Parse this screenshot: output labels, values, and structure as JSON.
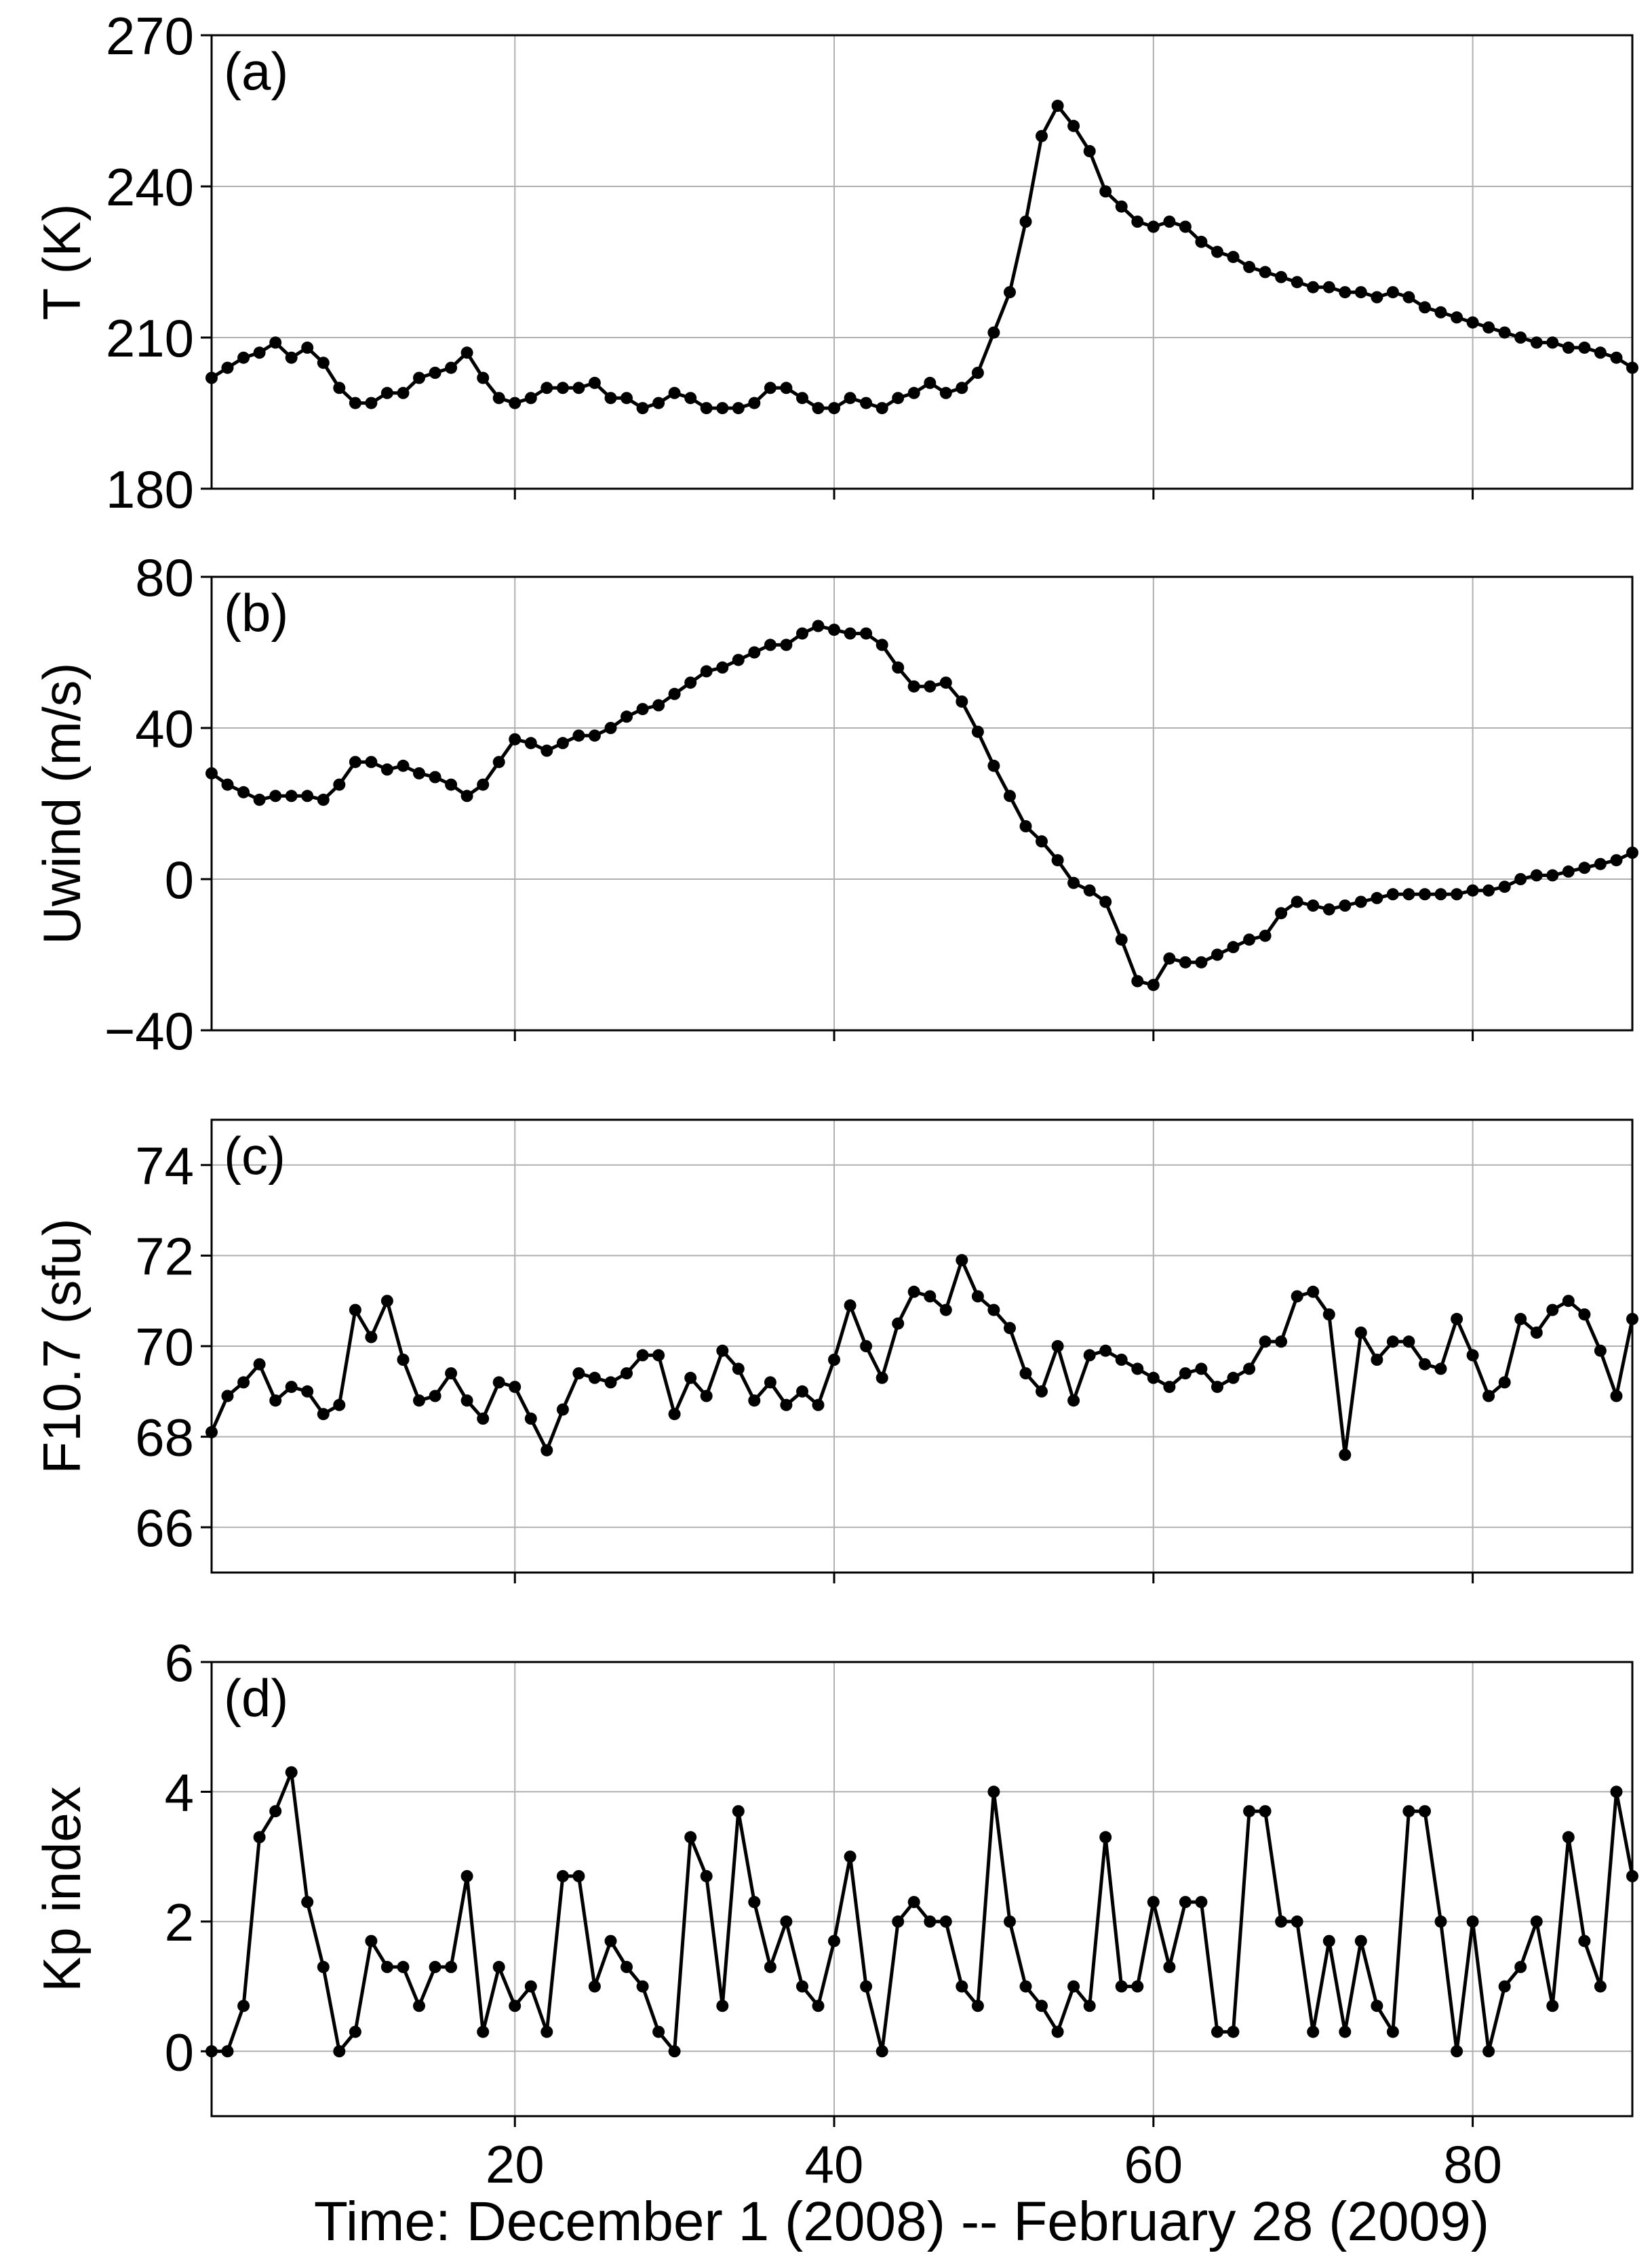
{
  "chart_data": [
    {
      "type": "line",
      "panel_label": "(a)",
      "ylabel": "T (K)",
      "xlim": [
        1,
        90
      ],
      "ylim": [
        180,
        270
      ],
      "yticks": [
        "180",
        "210",
        "240",
        "270"
      ],
      "grid": true,
      "x": [
        1,
        2,
        3,
        4,
        5,
        6,
        7,
        8,
        9,
        10,
        11,
        12,
        13,
        14,
        15,
        16,
        17,
        18,
        19,
        20,
        21,
        22,
        23,
        24,
        25,
        26,
        27,
        28,
        29,
        30,
        31,
        32,
        33,
        34,
        35,
        36,
        37,
        38,
        39,
        40,
        41,
        42,
        43,
        44,
        45,
        46,
        47,
        48,
        49,
        50,
        51,
        52,
        53,
        54,
        55,
        56,
        57,
        58,
        59,
        60,
        61,
        62,
        63,
        64,
        65,
        66,
        67,
        68,
        69,
        70,
        71,
        72,
        73,
        74,
        75,
        76,
        77,
        78,
        79,
        80,
        81,
        82,
        83,
        84,
        85,
        86,
        87,
        88,
        89,
        90
      ],
      "values": [
        202,
        204,
        206,
        207,
        209,
        206,
        208,
        205,
        200,
        197,
        197,
        199,
        199,
        202,
        203,
        204,
        207,
        202,
        198,
        197,
        198,
        200,
        200,
        200,
        201,
        198,
        198,
        196,
        197,
        199,
        198,
        196,
        196,
        196,
        197,
        200,
        200,
        198,
        196,
        196,
        198,
        197,
        196,
        198,
        199,
        201,
        199,
        200,
        203,
        211,
        219,
        233,
        250,
        256,
        252,
        247,
        239,
        236,
        233,
        232,
        233,
        232,
        229,
        227,
        226,
        224,
        223,
        222,
        221,
        220,
        220,
        219,
        219,
        218,
        219,
        218,
        216,
        215,
        214,
        213,
        212,
        211,
        210,
        209,
        209,
        208,
        208,
        207,
        206,
        204
      ]
    },
    {
      "type": "line",
      "panel_label": "(b)",
      "ylabel": "Uwind (m/s)",
      "xlim": [
        1,
        90
      ],
      "ylim": [
        -40,
        80
      ],
      "yticks": [
        "−40",
        "0",
        "40",
        "80"
      ],
      "grid": true,
      "x": [
        1,
        2,
        3,
        4,
        5,
        6,
        7,
        8,
        9,
        10,
        11,
        12,
        13,
        14,
        15,
        16,
        17,
        18,
        19,
        20,
        21,
        22,
        23,
        24,
        25,
        26,
        27,
        28,
        29,
        30,
        31,
        32,
        33,
        34,
        35,
        36,
        37,
        38,
        39,
        40,
        41,
        42,
        43,
        44,
        45,
        46,
        47,
        48,
        49,
        50,
        51,
        52,
        53,
        54,
        55,
        56,
        57,
        58,
        59,
        60,
        61,
        62,
        63,
        64,
        65,
        66,
        67,
        68,
        69,
        70,
        71,
        72,
        73,
        74,
        75,
        76,
        77,
        78,
        79,
        80,
        81,
        82,
        83,
        84,
        85,
        86,
        87,
        88,
        89,
        90
      ],
      "values": [
        28,
        25,
        23,
        21,
        22,
        22,
        22,
        21,
        25,
        31,
        31,
        29,
        30,
        28,
        27,
        25,
        22,
        25,
        31,
        37,
        36,
        34,
        36,
        38,
        38,
        40,
        43,
        45,
        46,
        49,
        52,
        55,
        56,
        58,
        60,
        62,
        62,
        65,
        67,
        66,
        65,
        65,
        62,
        56,
        51,
        51,
        52,
        47,
        39,
        30,
        22,
        14,
        10,
        5,
        -1,
        -3,
        -6,
        -16,
        -27,
        -28,
        -21,
        -22,
        -22,
        -20,
        -18,
        -16,
        -15,
        -9,
        -6,
        -7,
        -8,
        -7,
        -6,
        -5,
        -4,
        -4,
        -4,
        -4,
        -4,
        -3,
        -3,
        -2,
        0,
        1,
        1,
        2,
        3,
        4,
        5,
        7
      ]
    },
    {
      "type": "line",
      "panel_label": "(c)",
      "ylabel": "F10.7 (sfu)",
      "xlim": [
        1,
        90
      ],
      "ylim": [
        65,
        75
      ],
      "yticks": [
        "66",
        "68",
        "70",
        "72",
        "74"
      ],
      "grid": true,
      "x": [
        1,
        2,
        3,
        4,
        5,
        6,
        7,
        8,
        9,
        10,
        11,
        12,
        13,
        14,
        15,
        16,
        17,
        18,
        19,
        20,
        21,
        22,
        23,
        24,
        25,
        26,
        27,
        28,
        29,
        30,
        31,
        32,
        33,
        34,
        35,
        36,
        37,
        38,
        39,
        40,
        41,
        42,
        43,
        44,
        45,
        46,
        47,
        48,
        49,
        50,
        51,
        52,
        53,
        54,
        55,
        56,
        57,
        58,
        59,
        60,
        61,
        62,
        63,
        64,
        65,
        66,
        67,
        68,
        69,
        70,
        71,
        72,
        73,
        74,
        75,
        76,
        77,
        78,
        79,
        80,
        81,
        82,
        83,
        84,
        85,
        86,
        87,
        88,
        89,
        90
      ],
      "values": [
        68.1,
        68.9,
        69.2,
        69.6,
        68.8,
        69.1,
        69.0,
        68.5,
        68.7,
        70.8,
        70.2,
        71.0,
        69.7,
        68.8,
        68.9,
        69.4,
        68.8,
        68.4,
        69.2,
        69.1,
        68.4,
        67.7,
        68.6,
        69.4,
        69.3,
        69.2,
        69.4,
        69.8,
        69.8,
        68.5,
        69.3,
        68.9,
        69.9,
        69.5,
        68.8,
        69.2,
        68.7,
        69.0,
        68.7,
        69.7,
        70.9,
        70.0,
        69.3,
        70.5,
        71.2,
        71.1,
        70.8,
        71.9,
        71.1,
        70.8,
        70.4,
        69.4,
        69.0,
        70.0,
        68.8,
        69.8,
        69.9,
        69.7,
        69.5,
        69.3,
        69.1,
        69.4,
        69.5,
        69.1,
        69.3,
        69.5,
        70.1,
        70.1,
        71.1,
        71.2,
        70.7,
        67.6,
        70.3,
        69.7,
        70.1,
        70.1,
        69.6,
        69.5,
        70.6,
        69.8,
        68.9,
        69.2,
        70.6,
        70.3,
        70.8,
        71.0,
        70.7,
        69.9,
        68.9,
        70.6
      ]
    },
    {
      "type": "line",
      "panel_label": "(d)",
      "ylabel": "Kp index",
      "xlim": [
        1,
        90
      ],
      "ylim": [
        -1,
        6
      ],
      "yticks": [
        "0",
        "2",
        "4",
        "6"
      ],
      "xticks": [
        "20",
        "40",
        "60",
        "80"
      ],
      "xlabel": "Time: December 1 (2008) -- February 28 (2009)",
      "grid": true,
      "x": [
        1,
        2,
        3,
        4,
        5,
        6,
        7,
        8,
        9,
        10,
        11,
        12,
        13,
        14,
        15,
        16,
        17,
        18,
        19,
        20,
        21,
        22,
        23,
        24,
        25,
        26,
        27,
        28,
        29,
        30,
        31,
        32,
        33,
        34,
        35,
        36,
        37,
        38,
        39,
        40,
        41,
        42,
        43,
        44,
        45,
        46,
        47,
        48,
        49,
        50,
        51,
        52,
        53,
        54,
        55,
        56,
        57,
        58,
        59,
        60,
        61,
        62,
        63,
        64,
        65,
        66,
        67,
        68,
        69,
        70,
        71,
        72,
        73,
        74,
        75,
        76,
        77,
        78,
        79,
        80,
        81,
        82,
        83,
        84,
        85,
        86,
        87,
        88,
        89,
        90
      ],
      "values": [
        0,
        0,
        0.7,
        3.3,
        3.7,
        4.3,
        2.3,
        1.3,
        0,
        0.3,
        1.7,
        1.3,
        1.3,
        0.7,
        1.3,
        1.3,
        2.7,
        0.3,
        1.3,
        0.7,
        1.0,
        0.3,
        2.7,
        2.7,
        1.0,
        1.7,
        1.3,
        1.0,
        0.3,
        0,
        3.3,
        2.7,
        0.7,
        3.7,
        2.3,
        1.3,
        2.0,
        1.0,
        0.7,
        1.7,
        3.0,
        1.0,
        0,
        2.0,
        2.3,
        2.0,
        2.0,
        1.0,
        0.7,
        4.0,
        2.0,
        1.0,
        0.7,
        0.3,
        1.0,
        0.7,
        3.3,
        1.0,
        1.0,
        2.3,
        1.3,
        2.3,
        2.3,
        0.3,
        0.3,
        3.7,
        3.7,
        2.0,
        2.0,
        0.3,
        1.7,
        0.3,
        1.7,
        0.7,
        0.3,
        3.7,
        3.7,
        2.0,
        0,
        2.0,
        0,
        1.0,
        1.3,
        2.0,
        0.7,
        3.3,
        1.7,
        1.0,
        4.0,
        2.7
      ]
    }
  ]
}
